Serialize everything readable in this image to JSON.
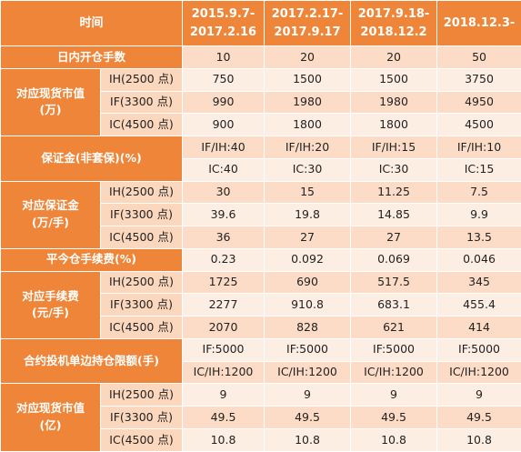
{
  "header": {
    "corner": "时间",
    "periods": [
      "2015.9.7-\n2017.2.16",
      "2017.2.17-\n2017.9.17",
      "2017.9.18-\n2018.12.2",
      "2018.12.3-"
    ]
  },
  "groups": [
    {
      "label": "日内开仓手数",
      "rows": [
        {
          "values": [
            10,
            20,
            20,
            50
          ]
        }
      ]
    },
    {
      "label": "对应现货市值\n(万)",
      "rows": [
        {
          "sub": "IH(2500 点)",
          "values": [
            750,
            1500,
            1500,
            3750
          ]
        },
        {
          "sub": "IF(3300 点)",
          "values": [
            990,
            1980,
            1980,
            4950
          ]
        },
        {
          "sub": "IC(4500 点)",
          "values": [
            900,
            1800,
            1800,
            4500
          ]
        }
      ]
    },
    {
      "label": "保证金(非套保)(%)",
      "rows": [
        {
          "values": [
            "IF/IH:40",
            "IF/IH:20",
            "IF/IH:15",
            "IF/IH:10"
          ]
        },
        {
          "values": [
            "IC:40",
            "IC:30",
            "IC:30",
            "IC:15"
          ]
        }
      ]
    },
    {
      "label": "对应保证金\n(万/手)",
      "rows": [
        {
          "sub": "IH(2500 点)",
          "values": [
            30,
            15,
            11.25,
            7.5
          ]
        },
        {
          "sub": "IF(3300 点)",
          "values": [
            39.6,
            19.8,
            14.85,
            9.9
          ]
        },
        {
          "sub": "IC(4500 点)",
          "values": [
            36,
            27,
            27,
            13.5
          ]
        }
      ]
    },
    {
      "label": "平今仓手续费(%)",
      "rows": [
        {
          "values": [
            0.23,
            0.092,
            0.069,
            0.046
          ]
        }
      ]
    },
    {
      "label": "对应手续费\n(元/手)",
      "rows": [
        {
          "sub": "IH(2500 点)",
          "values": [
            1725,
            690,
            517.5,
            345
          ]
        },
        {
          "sub": "IF(3300 点)",
          "values": [
            2277,
            910.8,
            683.1,
            455.4
          ]
        },
        {
          "sub": "IC(4500 点)",
          "values": [
            2070,
            828,
            621,
            414
          ]
        }
      ]
    },
    {
      "label": "合约投机单边持仓限额(手)",
      "rows": [
        {
          "values": [
            "IF:5000",
            "IF:5000",
            "IF:5000",
            "IF:5000"
          ]
        },
        {
          "values": [
            "IC/IH:1200",
            "IC/IH:1200",
            "IC/IH:1200",
            "IC/IH:1200"
          ]
        }
      ]
    },
    {
      "label": "对应现货市值\n(亿)",
      "rows": [
        {
          "sub": "IH(2500 点)",
          "values": [
            9,
            9,
            9,
            9
          ]
        },
        {
          "sub": "IF(3300 点)",
          "values": [
            49.5,
            49.5,
            49.5,
            49.5
          ]
        },
        {
          "sub": "IC(4500 点)",
          "values": [
            10.8,
            10.8,
            10.8,
            10.8
          ]
        }
      ]
    }
  ]
}
